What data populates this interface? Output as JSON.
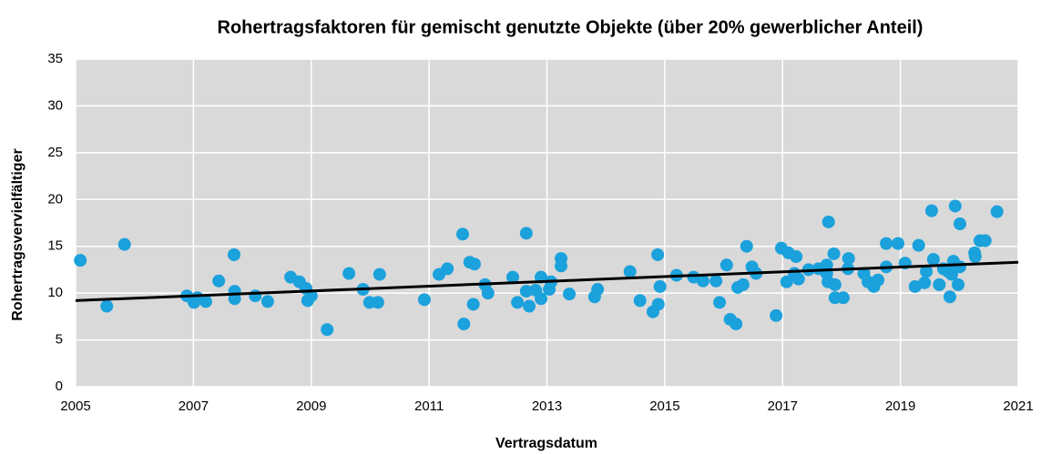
{
  "chart_data": {
    "type": "scatter",
    "title": "Rohertragsfaktoren für gemischt genutzte Objekte (über 20% gewerblicher Anteil)",
    "x_label": "Vertragsdatum",
    "y_label": "Rohertragsvervielfältiger",
    "color": "#1ba1dc",
    "plot_background": "#d9d9d9",
    "grid": true,
    "x": [
      2005.08,
      2005.53,
      2005.83,
      2006.89,
      2007.01,
      2007.07,
      2007.21,
      2007.43,
      2007.69,
      2007.7,
      2007.7,
      2008.05,
      2008.26,
      2008.65,
      2008.8,
      2008.91,
      2008.94,
      2009.0,
      2009.27,
      2009.64,
      2009.88,
      2009.99,
      2010.13,
      2010.16,
      2010.92,
      2011.17,
      2011.31,
      2011.57,
      2011.59,
      2011.69,
      2011.77,
      2011.75,
      2011.95,
      2012.0,
      2012.42,
      2012.5,
      2012.65,
      2012.65,
      2012.7,
      2012.81,
      2012.9,
      2012.9,
      2013.04,
      2013.07,
      2013.24,
      2013.24,
      2013.38,
      2013.81,
      2013.86,
      2014.41,
      2014.58,
      2014.8,
      2014.88,
      2014.89,
      2014.92,
      2015.2,
      2015.49,
      2015.65,
      2015.87,
      2015.93,
      2016.05,
      2016.11,
      2016.21,
      2016.24,
      2016.33,
      2016.39,
      2016.48,
      2016.55,
      2016.89,
      2016.98,
      2017.07,
      2017.1,
      2017.2,
      2017.23,
      2017.27,
      2017.44,
      2017.61,
      2017.75,
      2017.78,
      2017.75,
      2017.77,
      2017.87,
      2017.89,
      2017.89,
      2018.03,
      2018.11,
      2018.12,
      2018.38,
      2018.45,
      2018.55,
      2018.62,
      2018.76,
      2018.76,
      2018.96,
      2019.08,
      2019.25,
      2019.31,
      2019.41,
      2019.44,
      2019.53,
      2019.56,
      2019.66,
      2019.73,
      2019.81,
      2019.84,
      2019.87,
      2019.9,
      2019.93,
      2019.98,
      2020.01,
      2020.01,
      2020.26,
      2020.27,
      2020.35,
      2020.44,
      2020.64
    ],
    "values": [
      13.5,
      8.6,
      15.2,
      9.7,
      9.0,
      9.5,
      9.1,
      11.3,
      14.1,
      10.2,
      9.4,
      9.7,
      9.1,
      11.7,
      11.2,
      10.5,
      9.2,
      9.7,
      6.1,
      12.1,
      10.4,
      9.0,
      9.0,
      12.0,
      9.3,
      12.0,
      12.6,
      16.3,
      6.7,
      13.3,
      13.1,
      8.8,
      10.9,
      10.0,
      11.7,
      9.0,
      16.4,
      10.2,
      8.6,
      10.3,
      9.4,
      11.7,
      10.4,
      11.2,
      13.7,
      12.9,
      9.9,
      9.6,
      10.4,
      12.3,
      9.2,
      8.0,
      14.1,
      8.8,
      10.7,
      11.9,
      11.7,
      11.3,
      11.3,
      9.0,
      13.0,
      7.2,
      6.7,
      10.6,
      10.9,
      15.0,
      12.8,
      12.1,
      7.6,
      14.8,
      11.2,
      14.3,
      12.1,
      13.9,
      11.5,
      12.5,
      12.6,
      13.0,
      17.6,
      12.1,
      11.2,
      14.2,
      9.5,
      10.9,
      9.5,
      12.6,
      13.7,
      12.1,
      11.2,
      10.7,
      11.4,
      12.8,
      15.3,
      15.3,
      13.2,
      10.7,
      15.1,
      11.1,
      12.3,
      18.8,
      13.6,
      10.9,
      12.6,
      12.3,
      9.6,
      12.0,
      13.4,
      19.3,
      10.9,
      17.4,
      12.8,
      14.3,
      13.9,
      15.6,
      15.6,
      18.7
    ],
    "trendline": {
      "x": [
        2005,
        2021
      ],
      "values": [
        9.2,
        13.3
      ],
      "color": "#000000"
    },
    "xlim": [
      2005,
      2021
    ],
    "xticks": [
      2005,
      2007,
      2009,
      2011,
      2013,
      2015,
      2017,
      2019,
      2021
    ],
    "ylim": [
      0,
      35
    ],
    "yticks": [
      0,
      5,
      10,
      15,
      20,
      25,
      30,
      35
    ]
  }
}
